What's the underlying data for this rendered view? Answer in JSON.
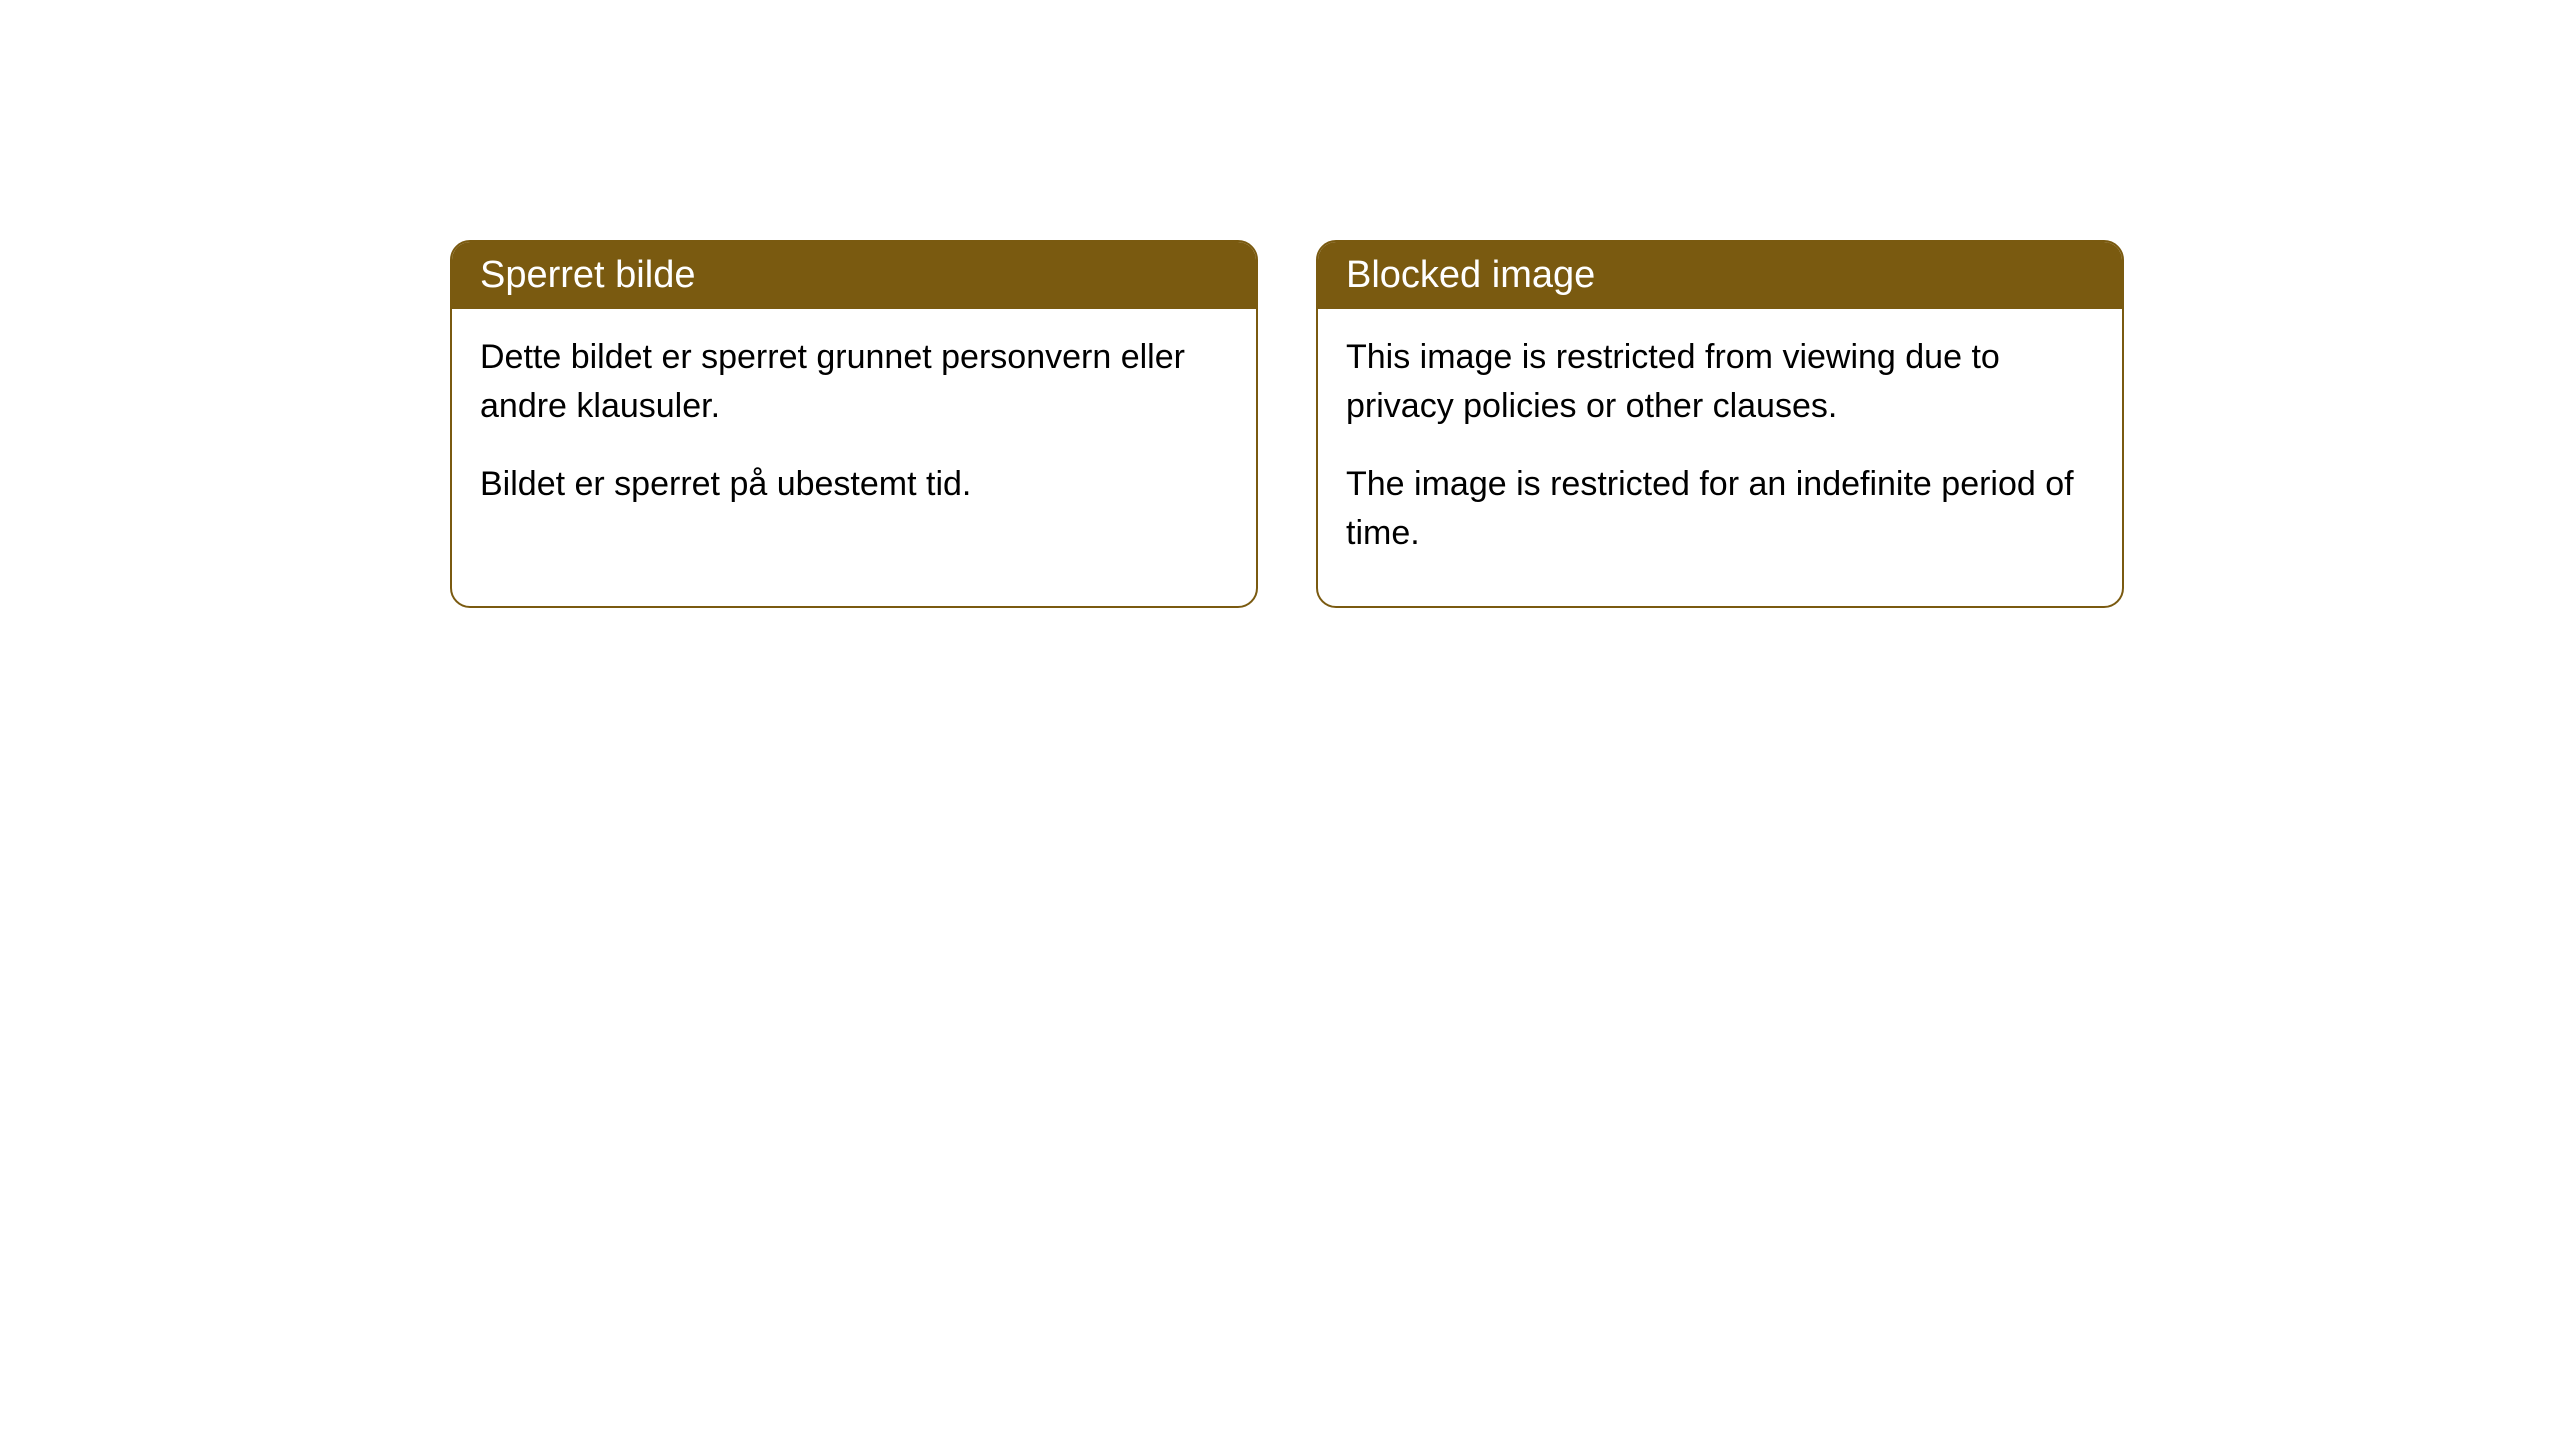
{
  "theme": {
    "header_bg_color": "#7a5a10",
    "header_text_color": "#ffffff",
    "card_border_color": "#7a5a10",
    "card_bg_color": "#ffffff",
    "body_text_color": "#000000",
    "page_bg_color": "#ffffff",
    "header_fontsize": 38,
    "body_fontsize": 34,
    "border_radius": 20
  },
  "cards": [
    {
      "title": "Sperret bilde",
      "paragraph1": "Dette bildet er sperret grunnet personvern eller andre klausuler.",
      "paragraph2": "Bildet er sperret på ubestemt tid."
    },
    {
      "title": "Blocked image",
      "paragraph1": "This image is restricted from viewing due to privacy policies or other clauses.",
      "paragraph2": "The image is restricted for an indefinite period of time."
    }
  ]
}
